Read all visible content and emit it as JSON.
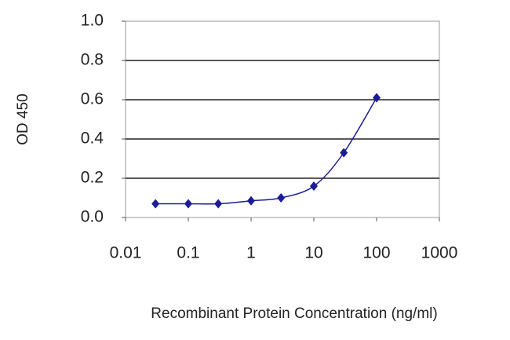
{
  "chart_data": {
    "type": "line",
    "x_label": "Recombinant Protein Concentration (ng/ml)",
    "y_label": "OD 450",
    "xscale": "log",
    "x": [
      0.03,
      0.1,
      0.3,
      1,
      3,
      10,
      30,
      100
    ],
    "series": [
      {
        "color": "#1c1c94",
        "values": [
          0.07,
          0.07,
          0.07,
          0.085,
          0.1,
          0.16,
          0.33,
          0.61
        ]
      }
    ],
    "xlim": [
      0.01,
      1000
    ],
    "xticks": [
      0.01,
      0.1,
      1,
      10,
      100,
      1000
    ],
    "ylim": [
      0,
      1
    ],
    "yticks": [
      {
        "value": 0,
        "label": "0.0"
      },
      0.2,
      0.4,
      0.6,
      0.8,
      {
        "value": 1,
        "label": "1.0"
      }
    ],
    "grid": true
  }
}
